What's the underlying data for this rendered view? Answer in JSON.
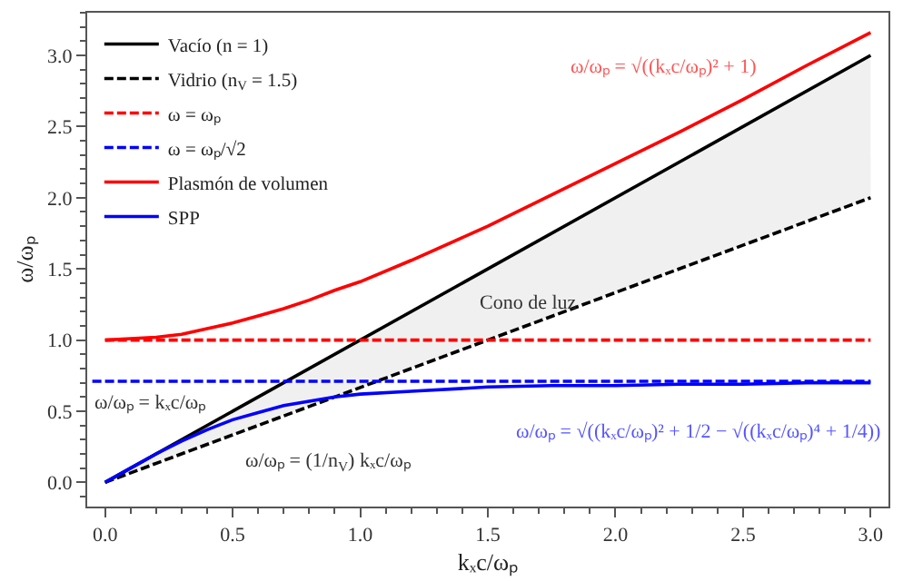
{
  "chart_data": {
    "type": "line",
    "xlabel": "kₓc/ωₚ",
    "ylabel": "ω/ωₚ",
    "xlim": [
      -0.07,
      3.07
    ],
    "ylim": [
      -0.17,
      3.3
    ],
    "xticks": [
      {
        "value": 0,
        "label": "0.0"
      },
      0.5,
      {
        "value": 1,
        "label": "1.0"
      },
      1.5,
      {
        "value": 2,
        "label": "2.0"
      },
      2.5,
      {
        "value": 3,
        "label": "3.0"
      }
    ],
    "yticks": [
      {
        "value": 0,
        "label": "0.0"
      },
      0.5,
      {
        "value": 1,
        "label": "1.0"
      },
      1.5,
      {
        "value": 2,
        "label": "2.0"
      },
      2.5,
      {
        "value": 3,
        "label": "3.0"
      }
    ],
    "legend": "top left",
    "marker": "none",
    "series": [
      {
        "name": "Vacío (n = 1)",
        "color": "#000000",
        "line_style": "solid",
        "x": [
          0,
          3
        ],
        "values": [
          0,
          3
        ],
        "lower": [
          0,
          2
        ],
        "upper": [
          0,
          3
        ]
      },
      {
        "name": "Vidrio (n$_{V}$ = 1.5)",
        "color": "#000000",
        "line_style": "dashed",
        "x": [
          0,
          3
        ],
        "values": [
          0,
          2
        ]
      },
      {
        "name": "ω = ωₚ",
        "color": "#ff0000",
        "line_style": "dashed",
        "x": [
          0,
          3
        ],
        "values": [
          1,
          1
        ]
      },
      {
        "name": "ω = ωₚ/√2",
        "color": "#0000ff",
        "line_style": "dashed",
        "x": [
          -0.05,
          3
        ],
        "values": [
          0.71,
          0.71
        ]
      },
      {
        "name": "Plasmón de volumen",
        "color": "#ff0000",
        "line_style": "solid",
        "x": [
          0,
          0.1,
          0.2,
          0.3,
          0.4,
          0.5,
          0.6,
          0.7,
          0.8,
          0.9,
          1.0,
          1.2,
          1.5,
          1.75,
          2.0,
          2.25,
          2.5,
          2.75,
          3.0
        ],
        "values": [
          1.0,
          1.01,
          1.02,
          1.04,
          1.08,
          1.12,
          1.17,
          1.22,
          1.28,
          1.35,
          1.41,
          1.56,
          1.8,
          2.02,
          2.24,
          2.46,
          2.69,
          2.93,
          3.16
        ]
      },
      {
        "name": "SPP",
        "color": "#0000ff",
        "line_style": "solid",
        "x": [
          0,
          0.1,
          0.2,
          0.3,
          0.4,
          0.5,
          0.6,
          0.7,
          0.8,
          0.9,
          1.0,
          1.2,
          1.5,
          1.75,
          2.0,
          2.25,
          2.5,
          2.75,
          3.0
        ],
        "values": [
          0.0,
          0.1,
          0.2,
          0.29,
          0.37,
          0.44,
          0.49,
          0.54,
          0.57,
          0.6,
          0.62,
          0.64,
          0.67,
          0.68,
          0.68,
          0.69,
          0.69,
          0.7,
          0.7
        ]
      }
    ],
    "annotations": [
      "Cono de luz",
      "ω/ωₚ = √((kₓc/ωₚ)² + 1)",
      "ω/ωₚ = kₓc/ωₚ",
      "ω/ωₚ = (1/n$_{V}$) kₓc/ωₚ",
      "ω/ωₚ = √((kₓc/ωₚ)² + 1/2 − √((kₓc/ωₚ)⁴ + 1/4))"
    ]
  }
}
